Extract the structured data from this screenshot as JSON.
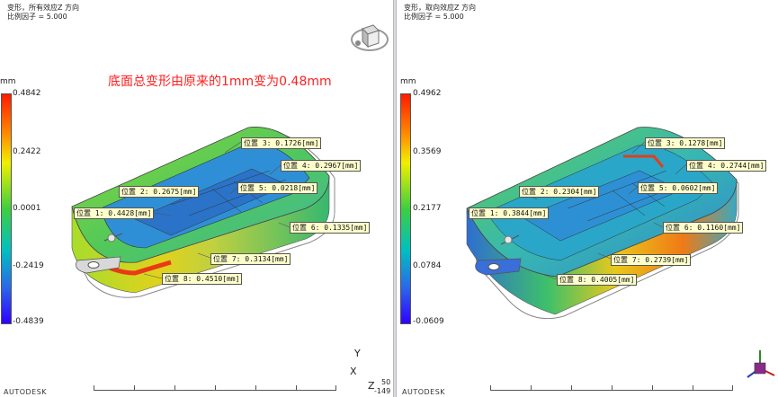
{
  "annotation": "底面总变形由原来的1mm变为0.48mm",
  "left": {
    "header_line1": "变形，所有效应Z 方向",
    "header_line2": "比例因子 = 5.000",
    "unit": "mm",
    "scale_ticks": [
      "0.4842",
      "0.2422",
      "0.0001",
      "-0.2419",
      "-0.4839"
    ],
    "labels": [
      "位置 3: 0.1726[mm]",
      "位置 4: 0.2967[mm]",
      "位置 2: 0.2675[mm]",
      "位置 5:  0.0218[mm]",
      "位置 1: 0.4428[mm]",
      "位置 6: 0.1335[mm]",
      "位置 7: 0.3134[mm]",
      "位置 8: 0.4510[mm]"
    ],
    "axis_y": "Y",
    "axis_x": "X",
    "axis_z": "Z",
    "coord_top": "50",
    "coord_bottom": "-149",
    "brand": "AUTODESK",
    "ruler_label": "───"
  },
  "right": {
    "header_line1": "变形，取向效应Z 方向",
    "header_line2": "比例因子 = 5.000",
    "unit": "mm",
    "scale_ticks": [
      "0.4962",
      "0.3569",
      "0.2177",
      "0.0784",
      "-0.0609"
    ],
    "labels": [
      "位置 3: 0.1278[mm]",
      "位置 4: 0.2744[mm]",
      "位置 2: 0.2304[mm]",
      "位置 5:  0.0602[mm]",
      "位置 1: 0.3844[mm]",
      "位置 6: 0.1160[mm]",
      "位置 7: 0.2739[mm]",
      "位置 8: 0.4005[mm]"
    ],
    "brand": "AUTODESK"
  }
}
